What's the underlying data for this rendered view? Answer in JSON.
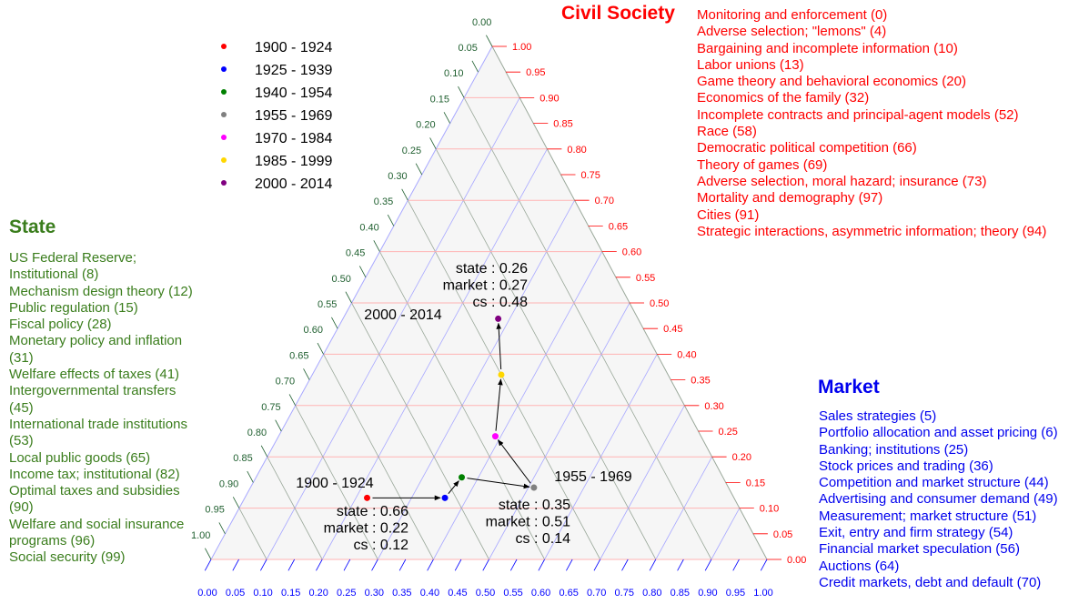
{
  "civil_society": {
    "title": "Civil Society",
    "color": "#ff0000",
    "items": [
      "Monitoring and enforcement (0)",
      "Adverse selection; \"lemons\" (4)",
      "Bargaining and incomplete information (10)",
      "Labor unions (13)",
      "Game theory and behavioral economics (20)",
      "Economics of the family (32)",
      "Incomplete contracts and principal-agent models (52)",
      "Race (58)",
      "Democratic political competition (66)",
      "Theory of games (69)",
      "Adverse selection, moral hazard; insurance (73)",
      "Mortality and demography (97)",
      "Cities (91)",
      "Strategic interactions, asymmetric information; theory (94)"
    ]
  },
  "state": {
    "title": "State",
    "color": "#3a7d1c",
    "items": [
      "US Federal Reserve; Institutional (8)",
      "Mechanism design theory (12)",
      "Public regulation (15)",
      "Fiscal policy (28)",
      "Monetary policy and inflation (31)",
      "Welfare effects of taxes (41)",
      "Intergovernmental transfers (45)",
      "International trade institutions (53)",
      "Local public goods (65)",
      "Income tax; institutional (82)",
      "Optimal taxes and subsidies (90)",
      "Welfare and social insurance programs (96)",
      "Social security (99)"
    ]
  },
  "market": {
    "title": "Market",
    "color": "#0000ee",
    "items": [
      "Sales strategies (5)",
      "Portfolio allocation and asset pricing (6)",
      "Banking; institutions (25)",
      "Stock prices and trading (36)",
      "Competition and market structure (44)",
      "Advertising and consumer demand (49)",
      "Measurement; market structure (51)",
      "Exit, entry and firm strategy (54)",
      "Financial market speculation (56)",
      "Auctions (64)",
      "Credit markets, debt and default (70)"
    ]
  },
  "chart_data": {
    "type": "ternary",
    "axes": {
      "state": {
        "ticks": [
          "0.00",
          "0.05",
          "0.10",
          "0.15",
          "0.20",
          "0.25",
          "0.30",
          "0.35",
          "0.40",
          "0.45",
          "0.50",
          "0.55",
          "0.60",
          "0.65",
          "0.70",
          "0.75",
          "0.80",
          "0.85",
          "0.90",
          "0.95",
          "1.00"
        ],
        "color": "#1f5f2f",
        "range": [
          0,
          1
        ]
      },
      "market": {
        "ticks": [
          "0.00",
          "0.05",
          "0.10",
          "0.15",
          "0.20",
          "0.25",
          "0.30",
          "0.35",
          "0.40",
          "0.45",
          "0.50",
          "0.55",
          "0.60",
          "0.65",
          "0.70",
          "0.75",
          "0.80",
          "0.85",
          "0.90",
          "0.95",
          "1.00"
        ],
        "color": "#0000ff",
        "range": [
          0,
          1
        ]
      },
      "cs": {
        "ticks": [
          "0.00",
          "0.05",
          "0.10",
          "0.15",
          "0.20",
          "0.25",
          "0.30",
          "0.35",
          "0.40",
          "0.45",
          "0.50",
          "0.55",
          "0.60",
          "0.65",
          "0.70",
          "0.75",
          "0.80",
          "0.85",
          "0.90",
          "0.95",
          "1.00"
        ],
        "color": "#ff0000",
        "range": [
          0,
          1
        ]
      }
    },
    "grid": true,
    "legend_position": "top-left",
    "series": [
      {
        "name": "1900 - 1924",
        "color": "#ff0000",
        "state": 0.66,
        "market": 0.22,
        "cs": 0.12
      },
      {
        "name": "1925 - 1939",
        "color": "#0000ff",
        "state": 0.52,
        "market": 0.36,
        "cs": 0.12
      },
      {
        "name": "1940 - 1954",
        "color": "#008000",
        "state": 0.47,
        "market": 0.37,
        "cs": 0.16
      },
      {
        "name": "1955 - 1969",
        "color": "#808080",
        "state": 0.35,
        "market": 0.51,
        "cs": 0.14
      },
      {
        "name": "1970 - 1984",
        "color": "#ff00ff",
        "state": 0.37,
        "market": 0.39,
        "cs": 0.24
      },
      {
        "name": "1985 - 1999",
        "color": "#ffd700",
        "state": 0.3,
        "market": 0.34,
        "cs": 0.36
      },
      {
        "name": "2000 - 2014",
        "color": "#800080",
        "state": 0.26,
        "market": 0.27,
        "cs": 0.48
      }
    ],
    "annotations": [
      {
        "label": "1900 - 1924",
        "lines": [
          "state : 0.66",
          "market : 0.22",
          "cs : 0.12"
        ]
      },
      {
        "label": "1955 - 1969",
        "lines": [
          "state : 0.35",
          "market : 0.51",
          "cs : 0.14"
        ]
      },
      {
        "label": "2000 - 2014",
        "lines": [
          "state : 0.26",
          "market : 0.27",
          "cs : 0.48"
        ]
      }
    ]
  }
}
